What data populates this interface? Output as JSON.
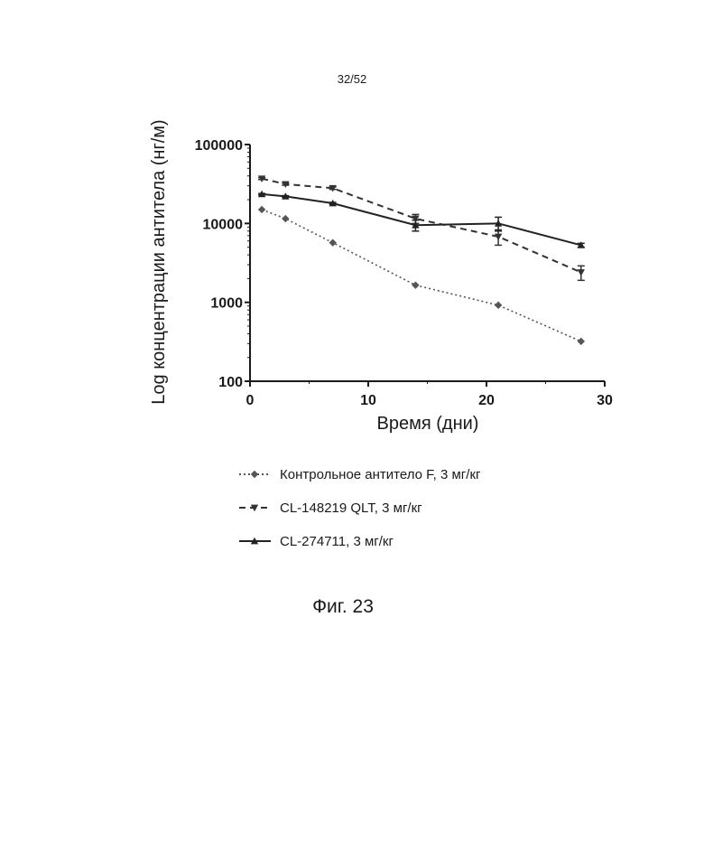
{
  "page": {
    "number": "32/52"
  },
  "figure": {
    "caption": "Фиг. 23"
  },
  "chart_data": {
    "type": "line",
    "xlabel": "Время (дни)",
    "ylabel": "Log концентрации антитела (нг/м)",
    "xlim": [
      0,
      30
    ],
    "ylim": [
      100,
      100000
    ],
    "yscale": "log",
    "x_ticks": [
      0,
      10,
      20,
      30
    ],
    "x_tick_labels": [
      "0",
      "10",
      "20",
      "30"
    ],
    "y_ticks": [
      100,
      1000,
      10000,
      100000
    ],
    "y_tick_labels": [
      "100",
      "1000",
      "10000",
      "100000"
    ],
    "grid": false,
    "legend_position": "bottom",
    "series": [
      {
        "name": "Контрольное антитело F, 3 мг/кг",
        "line_style": "dotted",
        "marker": "diamond",
        "color": "#555555",
        "x": [
          1,
          3,
          7,
          14,
          21,
          28
        ],
        "y": [
          15000,
          11500,
          5700,
          1650,
          920,
          320
        ]
      },
      {
        "name": "CL-148219 QLT, 3 мг/кг",
        "line_style": "dashed",
        "marker": "triangle-down",
        "color": "#333333",
        "x": [
          1,
          3,
          7,
          14,
          21,
          28
        ],
        "y": [
          37000,
          31500,
          28000,
          11500,
          6800,
          2400
        ],
        "error": [
          1000,
          1000,
          1000,
          1500,
          1500,
          500
        ]
      },
      {
        "name": "CL-274711, 3 мг/кг",
        "line_style": "solid",
        "marker": "triangle-up",
        "color": "#222222",
        "x": [
          1,
          3,
          7,
          14,
          21,
          28
        ],
        "y": [
          23500,
          22000,
          18000,
          9500,
          10000,
          5300
        ],
        "error": [
          500,
          500,
          500,
          1500,
          2000,
          300
        ]
      }
    ]
  }
}
